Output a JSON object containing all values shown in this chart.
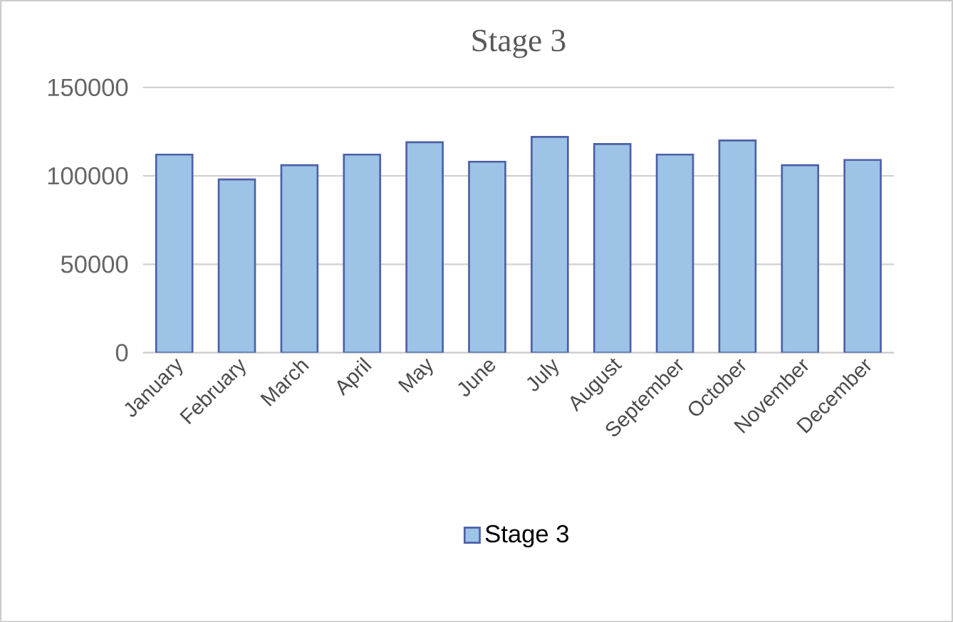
{
  "chart_data": {
    "type": "bar",
    "title": "Stage 3",
    "categories": [
      "January",
      "February",
      "March",
      "April",
      "May",
      "June",
      "July",
      "August",
      "September",
      "October",
      "November",
      "December"
    ],
    "series": [
      {
        "name": "Stage 3",
        "color": "#9dc3e6",
        "values": [
          112000,
          98000,
          106000,
          112000,
          119000,
          108000,
          122000,
          118000,
          112000,
          120000,
          106000,
          109000
        ]
      }
    ],
    "ylim": [
      0,
      150000
    ],
    "yticks": [
      0,
      50000,
      100000,
      150000
    ],
    "grid": "y",
    "legend": "bottom"
  }
}
